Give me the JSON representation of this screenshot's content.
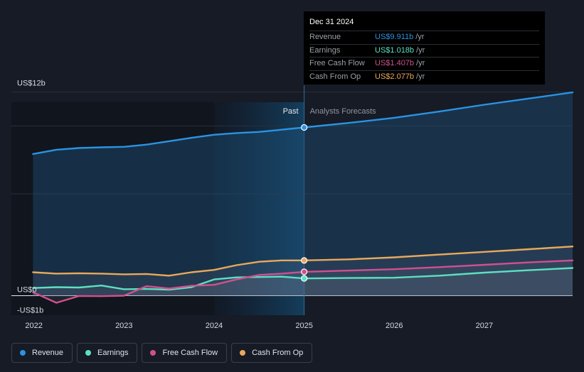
{
  "chart_data": {
    "type": "area",
    "y_ticks": [
      {
        "value": 12,
        "label": "US$12b"
      },
      {
        "value": 0,
        "label": "US$0"
      },
      {
        "value": -1,
        "label": "-US$1b"
      }
    ],
    "x_ticks": [
      {
        "value": 2022.0,
        "label": "2022"
      },
      {
        "value": 2023.0,
        "label": "2023"
      },
      {
        "value": 2024.0,
        "label": "2024"
      },
      {
        "value": 2025.0,
        "label": "2025"
      },
      {
        "value": 2026.0,
        "label": "2026"
      },
      {
        "value": 2027.0,
        "label": "2027"
      }
    ],
    "ylim": [
      -1.15,
      12.15
    ],
    "xlim": [
      2021.75,
      2027.98
    ],
    "divider_x": 2025.0,
    "past_label": "Past",
    "forecast_label": "Analysts Forecasts",
    "series": [
      {
        "name": "Revenue",
        "color": "#2b93e2",
        "x": [
          2021.99,
          2022.25,
          2022.5,
          2022.75,
          2023.0,
          2023.25,
          2023.5,
          2023.75,
          2024.0,
          2024.25,
          2024.5,
          2024.75,
          2025.0,
          2025.5,
          2026.0,
          2026.5,
          2027.0,
          2027.5,
          2027.98
        ],
        "y": [
          8.35,
          8.6,
          8.7,
          8.74,
          8.77,
          8.9,
          9.1,
          9.3,
          9.48,
          9.58,
          9.65,
          9.78,
          9.911,
          10.18,
          10.48,
          10.85,
          11.25,
          11.62,
          11.98
        ]
      },
      {
        "name": "Earnings",
        "color": "#5ce0c2",
        "x": [
          2021.99,
          2022.25,
          2022.5,
          2022.75,
          2023.0,
          2023.25,
          2023.5,
          2023.75,
          2024.0,
          2024.25,
          2024.5,
          2024.75,
          2025.0,
          2025.5,
          2026.0,
          2026.5,
          2027.0,
          2027.5,
          2027.98
        ],
        "y": [
          0.45,
          0.5,
          0.48,
          0.6,
          0.38,
          0.4,
          0.35,
          0.5,
          0.96,
          1.08,
          1.1,
          1.12,
          1.018,
          1.04,
          1.06,
          1.18,
          1.36,
          1.5,
          1.63
        ]
      },
      {
        "name": "Free Cash Flow",
        "color": "#d1508e",
        "x": [
          2021.99,
          2022.25,
          2022.5,
          2022.75,
          2023.0,
          2023.25,
          2023.5,
          2023.75,
          2024.0,
          2024.25,
          2024.5,
          2024.75,
          2025.0,
          2025.5,
          2026.0,
          2026.5,
          2027.0,
          2027.5,
          2027.98
        ],
        "y": [
          0.2,
          -0.42,
          -0.02,
          -0.03,
          0.0,
          0.56,
          0.42,
          0.58,
          0.64,
          0.96,
          1.22,
          1.3,
          1.407,
          1.48,
          1.56,
          1.68,
          1.82,
          1.96,
          2.08
        ]
      },
      {
        "name": "Cash From Op",
        "color": "#e9a95c",
        "x": [
          2021.99,
          2022.25,
          2022.5,
          2022.75,
          2023.0,
          2023.25,
          2023.5,
          2023.75,
          2024.0,
          2024.25,
          2024.5,
          2024.75,
          2025.0,
          2025.5,
          2026.0,
          2026.5,
          2027.0,
          2027.5,
          2027.98
        ],
        "y": [
          1.38,
          1.3,
          1.32,
          1.3,
          1.26,
          1.28,
          1.18,
          1.38,
          1.52,
          1.8,
          2.0,
          2.08,
          2.077,
          2.14,
          2.26,
          2.42,
          2.58,
          2.74,
          2.9
        ]
      }
    ]
  },
  "tooltip": {
    "date": "Dec 31 2024",
    "rows": [
      {
        "label": "Revenue",
        "value": "US$9.911b",
        "unit": "/yr",
        "color": "#2b93e2"
      },
      {
        "label": "Earnings",
        "value": "US$1.018b",
        "unit": "/yr",
        "color": "#5ce0c2"
      },
      {
        "label": "Free Cash Flow",
        "value": "US$1.407b",
        "unit": "/yr",
        "color": "#d1508e"
      },
      {
        "label": "Cash From Op",
        "value": "US$2.077b",
        "unit": "/yr",
        "color": "#e9a95c"
      }
    ]
  },
  "legend": [
    {
      "label": "Revenue",
      "color": "#2b93e2"
    },
    {
      "label": "Earnings",
      "color": "#5ce0c2"
    },
    {
      "label": "Free Cash Flow",
      "color": "#d1508e"
    },
    {
      "label": "Cash From Op",
      "color": "#e9a95c"
    }
  ]
}
